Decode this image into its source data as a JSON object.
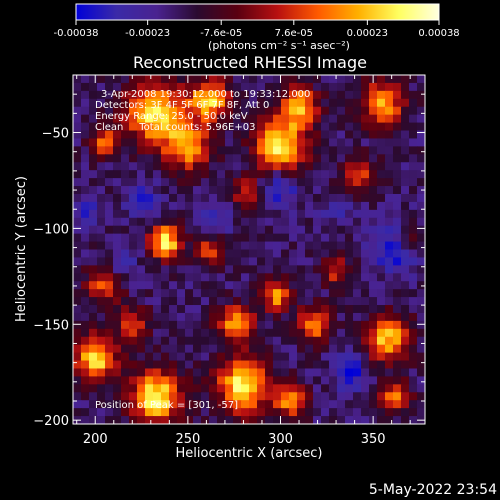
{
  "colors": {
    "background": "#000000",
    "foreground": "#ffffff",
    "colormap": [
      "#0000d8",
      "#3a2aa8",
      "#4a2290",
      "#2a0a30",
      "#5a0010",
      "#b81010",
      "#ff5a00",
      "#ffb000",
      "#ffff60",
      "#ffffe0"
    ]
  },
  "colorbar": {
    "ticks": [
      "-0.00038",
      "-0.00023",
      "-7.6e-05",
      "7.6e-05",
      "0.00023",
      "0.00038"
    ],
    "unit_label": "(photons cm⁻² s⁻¹ asec⁻²)",
    "range": [
      -0.00038,
      0.00038
    ]
  },
  "chart_data": {
    "type": "heatmap",
    "title": "Reconstructed RHESSI Image",
    "xlabel": "Heliocentric X (arcsec)",
    "ylabel": "Heliocentric Y (arcsec)",
    "xlim": [
      188,
      378
    ],
    "ylim": [
      -202,
      -20
    ],
    "x_ticks": [
      200,
      250,
      300,
      350
    ],
    "y_ticks": [
      -50,
      -100,
      -150,
      -200
    ],
    "annotations": [
      "3-Apr-2008 19:30:12.000 to 19:33:12.000",
      "Detectors: 3F 4F 5F 6F 7F 8F, Att 0",
      "Energy Range: 25.0 - 50.0 keV",
      "Clean     Total counts: 5.96E+03"
    ],
    "peak_label": "Position of Peak = [301, -57]",
    "peak": [
      301,
      -57
    ],
    "grid_size": [
      44,
      44
    ],
    "hotspots": [
      [
        232,
        -40,
        16,
        0.95
      ],
      [
        262,
        -33,
        11,
        0.9
      ],
      [
        250,
        -58,
        12,
        0.8
      ],
      [
        300,
        -57,
        14,
        1.0
      ],
      [
        310,
        -36,
        10,
        0.85
      ],
      [
        205,
        -55,
        8,
        0.6
      ],
      [
        355,
        -35,
        12,
        0.75
      ],
      [
        343,
        -72,
        9,
        0.55
      ],
      [
        282,
        -82,
        8,
        0.5
      ],
      [
        238,
        -107,
        9,
        0.95
      ],
      [
        262,
        -112,
        7,
        0.6
      ],
      [
        205,
        -130,
        10,
        0.6
      ],
      [
        276,
        -150,
        10,
        0.8
      ],
      [
        298,
        -135,
        8,
        0.75
      ],
      [
        318,
        -150,
        9,
        0.7
      ],
      [
        200,
        -168,
        12,
        0.9
      ],
      [
        233,
        -188,
        14,
        1.0
      ],
      [
        280,
        -182,
        14,
        1.0
      ],
      [
        305,
        -190,
        9,
        0.7
      ],
      [
        358,
        -158,
        12,
        0.85
      ],
      [
        362,
        -188,
        8,
        0.7
      ],
      [
        330,
        -122,
        8,
        0.5
      ],
      [
        220,
        -150,
        9,
        0.55
      ],
      [
        370,
        -105,
        7,
        0.45
      ]
    ],
    "coldspots": [
      [
        300,
        -78,
        10,
        0.9
      ],
      [
        362,
        -110,
        12,
        1.0
      ],
      [
        225,
        -85,
        9,
        0.7
      ],
      [
        338,
        -175,
        10,
        0.8
      ],
      [
        215,
        -120,
        8,
        0.6
      ],
      [
        265,
        -95,
        8,
        0.65
      ],
      [
        330,
        -90,
        7,
        0.6
      ],
      [
        195,
        -90,
        8,
        0.6
      ]
    ]
  },
  "timestamp": "5-May-2022 23:54"
}
